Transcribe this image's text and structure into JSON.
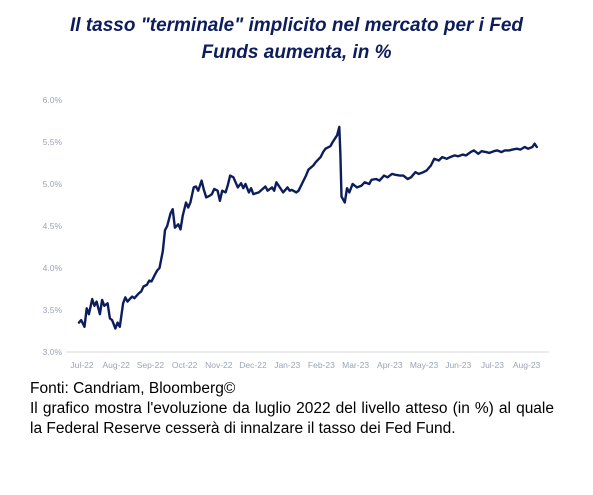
{
  "title": {
    "line1": "Il tasso \"terminale\" implicito nel mercato per i Fed",
    "line2": "Funds aumenta, in %"
  },
  "footnote": {
    "source": "Fonti: Candriam, Bloomberg©",
    "description": "Il grafico mostra l'evoluzione da luglio 2022 del livello atteso (in %) al quale la Federal Reserve cesserà di innalzare il tasso dei Fed Fund."
  },
  "colors": {
    "title": "#0d1d5c",
    "line": "#0d1d5c",
    "axis": "#d7d7d7",
    "ticks": "#9aa3b5"
  },
  "chart_data": {
    "type": "line",
    "title": "Il tasso \"terminale\" implicito nel mercato per i Fed Funds aumenta, in %",
    "xlabel": "",
    "ylabel": "",
    "x_tick_labels": [
      "Jul-22",
      "Aug-22",
      "Sep-22",
      "Oct-22",
      "Nov-22",
      "Dec-22",
      "Jan-23",
      "Feb-23",
      "Mar-23",
      "Apr-23",
      "May-23",
      "Jun-23",
      "Jul-23",
      "Aug-23"
    ],
    "y_tick_labels": [
      "3.0%",
      "3.5%",
      "4.0%",
      "4.5%",
      "5.0%",
      "5.5%",
      "6.0%"
    ],
    "ylim": [
      3.0,
      6.0
    ],
    "grid": false,
    "series": [
      {
        "x": [
          "2022-07-20",
          "2022-07-22",
          "2022-07-25",
          "2022-07-27",
          "2022-07-29",
          "2022-08-01",
          "2022-08-03",
          "2022-08-05",
          "2022-08-08",
          "2022-08-10",
          "2022-08-12",
          "2022-08-15",
          "2022-08-17",
          "2022-08-19",
          "2022-08-22",
          "2022-08-24",
          "2022-08-26",
          "2022-08-29",
          "2022-08-31",
          "2022-09-02",
          "2022-09-06",
          "2022-09-08",
          "2022-09-12",
          "2022-09-14",
          "2022-09-16",
          "2022-09-19",
          "2022-09-21",
          "2022-09-23",
          "2022-09-26",
          "2022-09-28",
          "2022-09-30",
          "2022-10-03",
          "2022-10-05",
          "2022-10-07",
          "2022-10-10",
          "2022-10-12",
          "2022-10-14",
          "2022-10-17",
          "2022-10-19",
          "2022-10-21",
          "2022-10-24",
          "2022-10-26",
          "2022-10-28",
          "2022-10-31",
          "2022-11-02",
          "2022-11-04",
          "2022-11-07",
          "2022-11-09",
          "2022-11-11",
          "2022-11-14",
          "2022-11-16",
          "2022-11-18",
          "2022-11-21",
          "2022-11-23",
          "2022-11-25",
          "2022-11-28",
          "2022-11-30",
          "2022-12-02",
          "2022-12-05",
          "2022-12-07",
          "2022-12-09",
          "2022-12-12",
          "2022-12-14",
          "2022-12-16",
          "2022-12-19",
          "2022-12-21",
          "2022-12-23",
          "2022-12-28",
          "2023-01-03",
          "2023-01-05",
          "2023-01-09",
          "2023-01-11",
          "2023-01-13",
          "2023-01-17",
          "2023-01-19",
          "2023-01-23",
          "2023-01-25",
          "2023-01-27",
          "2023-01-31",
          "2023-02-02",
          "2023-02-06",
          "2023-02-08",
          "2023-02-10",
          "2023-02-14",
          "2023-02-16",
          "2023-02-20",
          "2023-02-22",
          "2023-02-24",
          "2023-02-28",
          "2023-03-02",
          "2023-03-06",
          "2023-03-08",
          "2023-03-09",
          "2023-03-10",
          "2023-03-13",
          "2023-03-15",
          "2023-03-17",
          "2023-03-20",
          "2023-03-22",
          "2023-03-24",
          "2023-03-28",
          "2023-03-31",
          "2023-04-04",
          "2023-04-06",
          "2023-04-10",
          "2023-04-13",
          "2023-04-17",
          "2023-04-20",
          "2023-04-24",
          "2023-04-27",
          "2023-05-01",
          "2023-05-04",
          "2023-05-08",
          "2023-05-11",
          "2023-05-15",
          "2023-05-18",
          "2023-05-22",
          "2023-05-25",
          "2023-05-29",
          "2023-06-01",
          "2023-06-05",
          "2023-06-08",
          "2023-06-12",
          "2023-06-15",
          "2023-06-19",
          "2023-06-22",
          "2023-06-26",
          "2023-06-29",
          "2023-07-03",
          "2023-07-06",
          "2023-07-10",
          "2023-07-13",
          "2023-07-17",
          "2023-07-20",
          "2023-07-24",
          "2023-07-27",
          "2023-07-31",
          "2023-08-03",
          "2023-08-07",
          "2023-08-10",
          "2023-08-14",
          "2023-08-17",
          "2023-08-21",
          "2023-08-24",
          "2023-08-28",
          "2023-08-30",
          "2023-09-01"
        ],
        "values": [
          3.35,
          3.38,
          3.3,
          3.52,
          3.45,
          3.63,
          3.55,
          3.6,
          3.45,
          3.62,
          3.55,
          3.58,
          3.4,
          3.38,
          3.28,
          3.35,
          3.3,
          3.58,
          3.65,
          3.6,
          3.66,
          3.64,
          3.7,
          3.72,
          3.78,
          3.8,
          3.85,
          3.84,
          3.92,
          3.97,
          4.0,
          4.2,
          4.45,
          4.5,
          4.65,
          4.7,
          4.48,
          4.52,
          4.46,
          4.62,
          4.78,
          4.72,
          4.78,
          4.96,
          4.97,
          4.92,
          5.04,
          4.93,
          4.84,
          4.86,
          4.88,
          4.94,
          4.92,
          4.8,
          4.92,
          4.9,
          4.99,
          5.1,
          5.08,
          5.02,
          4.96,
          5.01,
          4.95,
          5.0,
          4.9,
          4.95,
          4.88,
          4.9,
          4.97,
          4.92,
          4.96,
          4.92,
          5.02,
          4.94,
          4.9,
          4.96,
          4.92,
          4.93,
          4.9,
          4.92,
          5.04,
          5.1,
          5.17,
          5.22,
          5.26,
          5.32,
          5.38,
          5.42,
          5.45,
          5.5,
          5.58,
          5.68,
          5.35,
          4.85,
          4.78,
          4.95,
          4.9,
          5.0,
          4.98,
          4.96,
          4.98,
          5.02,
          5.0,
          5.05,
          5.06,
          5.04,
          5.1,
          5.08,
          5.12,
          5.11,
          5.1,
          5.1,
          5.06,
          5.08,
          5.14,
          5.12,
          5.14,
          5.16,
          5.22,
          5.3,
          5.28,
          5.32,
          5.3,
          5.32,
          5.34,
          5.33,
          5.35,
          5.34,
          5.38,
          5.4,
          5.36,
          5.39,
          5.38,
          5.37,
          5.39,
          5.4,
          5.38,
          5.4,
          5.4,
          5.41,
          5.42,
          5.41,
          5.44,
          5.42,
          5.44,
          5.48,
          5.44
        ]
      }
    ]
  }
}
